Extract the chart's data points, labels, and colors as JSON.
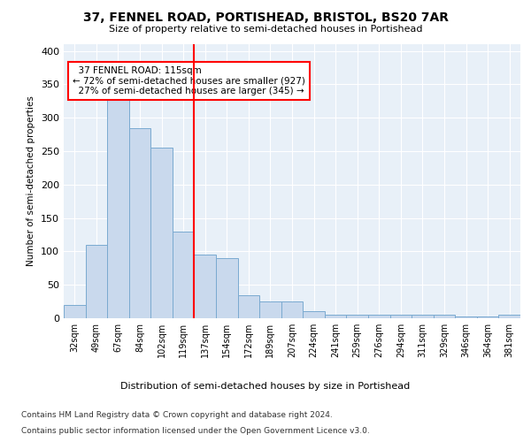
{
  "title": "37, FENNEL ROAD, PORTISHEAD, BRISTOL, BS20 7AR",
  "subtitle": "Size of property relative to semi-detached houses in Portishead",
  "xlabel": "Distribution of semi-detached houses by size in Portishead",
  "ylabel": "Number of semi-detached properties",
  "bin_labels": [
    "32sqm",
    "49sqm",
    "67sqm",
    "84sqm",
    "102sqm",
    "119sqm",
    "137sqm",
    "154sqm",
    "172sqm",
    "189sqm",
    "207sqm",
    "224sqm",
    "241sqm",
    "259sqm",
    "276sqm",
    "294sqm",
    "311sqm",
    "329sqm",
    "346sqm",
    "364sqm",
    "381sqm"
  ],
  "bar_values": [
    20,
    110,
    330,
    285,
    255,
    130,
    95,
    90,
    35,
    25,
    25,
    10,
    5,
    5,
    5,
    5,
    5,
    5,
    2,
    2,
    5
  ],
  "bar_color": "#c9d9ed",
  "bar_edge_color": "#7aaad0",
  "property_line_index": 5,
  "property_line_label": "37 FENNEL ROAD: 115sqm",
  "pct_smaller": 72,
  "pct_larger": 27,
  "count_smaller": 927,
  "count_larger": 345,
  "vline_color": "red",
  "ylim": [
    0,
    410
  ],
  "plot_bg_color": "#e8f0f8",
  "footer1": "Contains HM Land Registry data © Crown copyright and database right 2024.",
  "footer2": "Contains public sector information licensed under the Open Government Licence v3.0."
}
